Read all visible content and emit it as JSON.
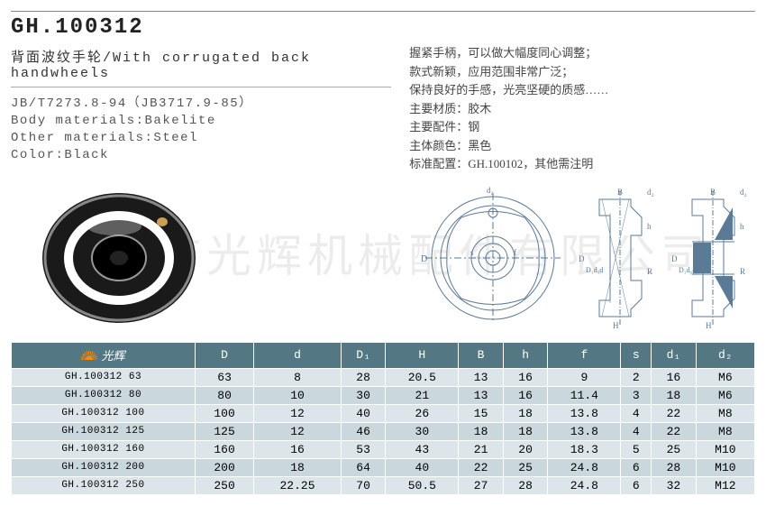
{
  "watermark": "深州市光辉机械配件有限公司",
  "partNo": "GH.100312",
  "title": "背面波纹手轮/With corrugated back handwheels",
  "specs": {
    "standard": "JB/T7273.8-94（JB3717.9-85）",
    "body": "Body materials:Bakelite",
    "other": "Other materials:Steel",
    "color": "Color:Black"
  },
  "desc": [
    "握紧手柄，可以做大幅度同心调整；",
    "款式新颖，应用范围非常广泛；",
    "保持良好的手感，光亮坚硬的质感……",
    "主要材质：胶木",
    "主要配件：钢",
    "主体颜色：黑色",
    "标准配置：GH.100102，其他需注明"
  ],
  "table": {
    "logoText": "光辉",
    "headers": [
      "D",
      "d",
      "D₁",
      "H",
      "B",
      "h",
      "f",
      "s",
      "d₁",
      "d₂"
    ],
    "headerBg": "#547784",
    "rowAltBg": [
      "#dce6ea",
      "#cad8de"
    ],
    "rows": [
      {
        "label": "GH.100312 63",
        "v": [
          "63",
          "8",
          "28",
          "20.5",
          "13",
          "16",
          "9",
          "2",
          "16",
          "M6"
        ]
      },
      {
        "label": "GH.100312 80",
        "v": [
          "80",
          "10",
          "30",
          "21",
          "13",
          "16",
          "11.4",
          "3",
          "18",
          "M6"
        ]
      },
      {
        "label": "GH.100312 100",
        "v": [
          "100",
          "12",
          "40",
          "26",
          "15",
          "18",
          "13.8",
          "4",
          "22",
          "M8"
        ]
      },
      {
        "label": "GH.100312 125",
        "v": [
          "125",
          "12",
          "46",
          "30",
          "18",
          "18",
          "13.8",
          "4",
          "22",
          "M8"
        ]
      },
      {
        "label": "GH.100312 160",
        "v": [
          "160",
          "16",
          "53",
          "43",
          "21",
          "20",
          "18.3",
          "5",
          "25",
          "M10"
        ]
      },
      {
        "label": "GH.100312 200",
        "v": [
          "200",
          "18",
          "64",
          "40",
          "22",
          "25",
          "24.8",
          "6",
          "28",
          "M10"
        ]
      },
      {
        "label": "GH.100312 250",
        "v": [
          "250",
          "22.25",
          "70",
          "50.5",
          "27",
          "28",
          "24.8",
          "6",
          "32",
          "M12"
        ]
      }
    ]
  }
}
